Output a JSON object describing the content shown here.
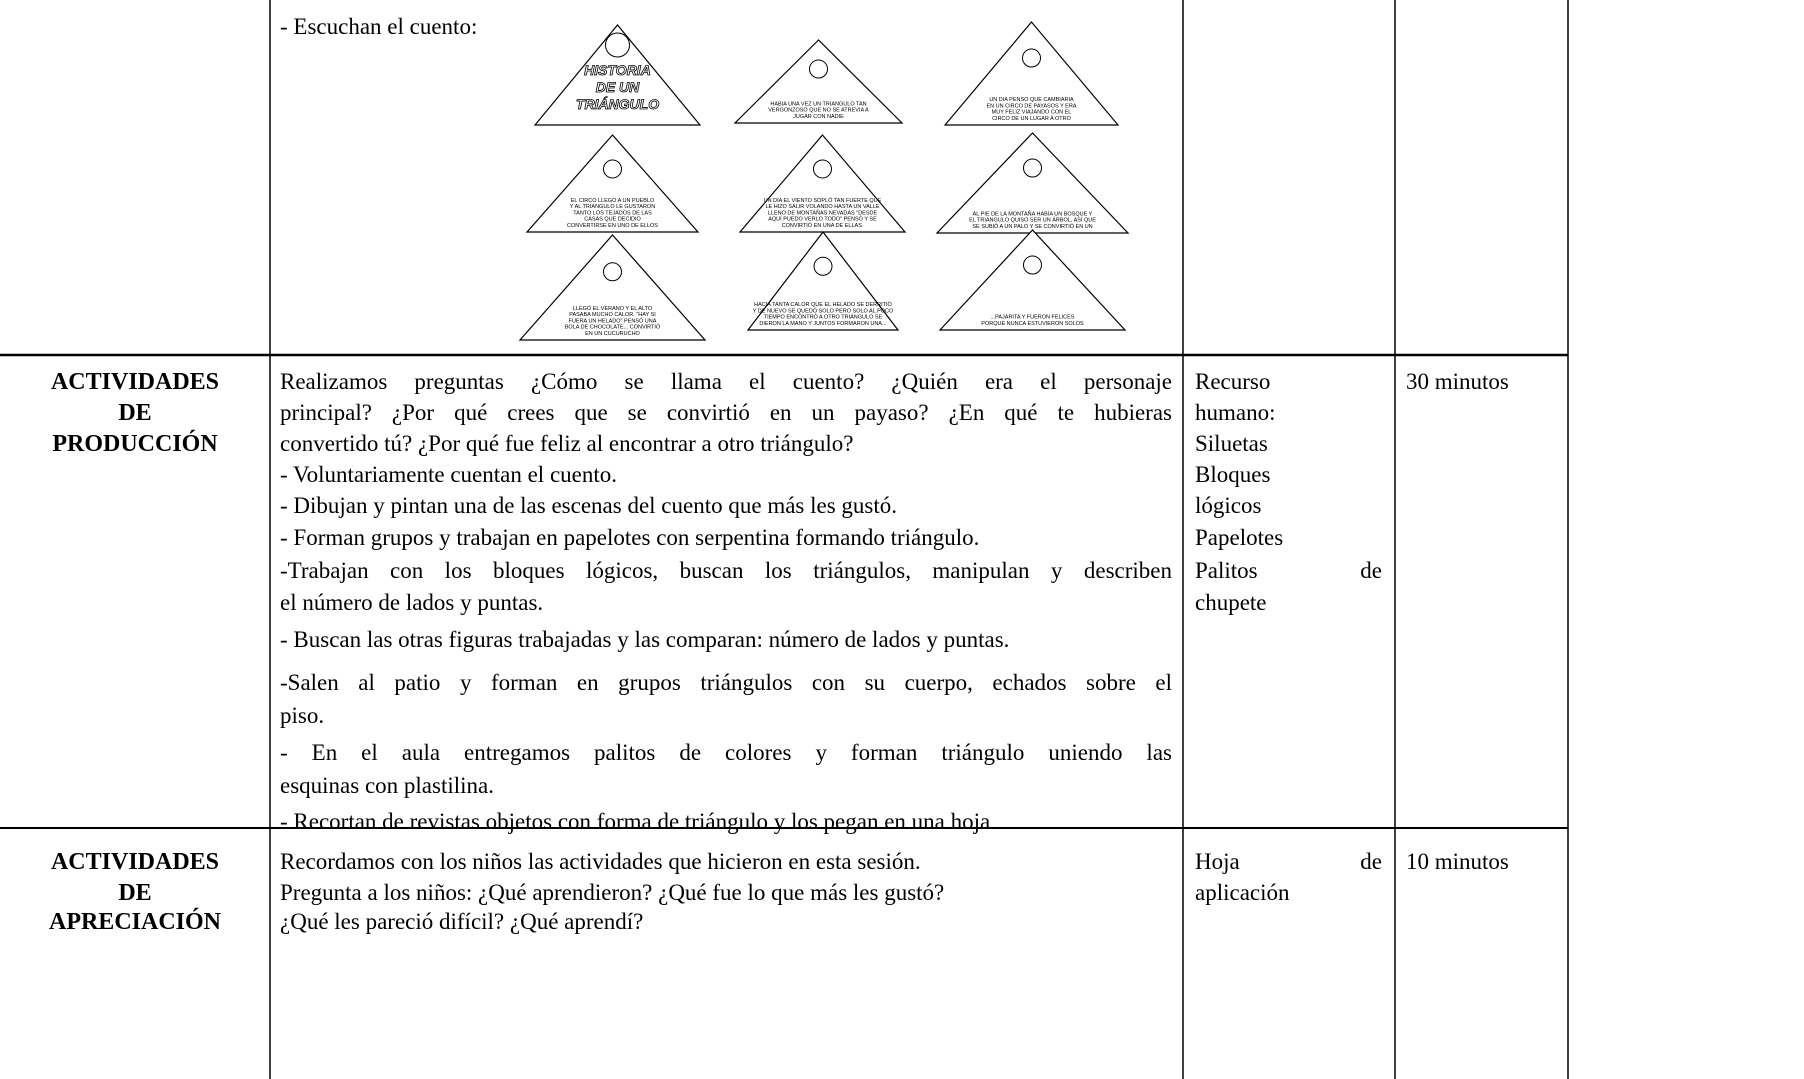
{
  "rows": [
    {
      "intro": "- Escuchan el cuento:",
      "story": [
        [
          "HISTORIA",
          "DE UN",
          "TRIÁNGULO"
        ],
        [
          "HABIA UNA VEZ UN TRIANGULO TAN",
          "VERGONZOSO QUE NO SE ATREVIA A",
          "JUGAR CON NADIE"
        ],
        [
          "UN DIA PENSO QUE CAMBIARIA",
          "EN UN CIRCO DE PAYASOS Y ERA",
          "MUY FELIZ VIAJANDO CON EL",
          "CIRCO DE UN LUGAR A OTRO"
        ],
        [
          "EL CIRCO LLEGO A UN PUEBLO",
          "Y AL TRIANGULO LE GUSTARON",
          "TANTO LOS TEJADOS DE LAS",
          "CASAS QUE DECIDIO",
          "CONVERTIRSE EN UNO DE ELLOS"
        ],
        [
          "UN DÍA EL VIENTO SOPLÓ TAN FUERTE QUE",
          "LE HIZO SALIR VOLANDO HASTA UN VALLE",
          "LLENO DE MONTAÑAS NEVADAS \"DESDE",
          "AQUÍ PUEDO VERLO TODO\" PENSÓ Y SE",
          "CONVIRTIÓ EN UNA DE ELLAS."
        ],
        [
          "AL PIE DE LA MONTAÑA HABÍA UN BOSQUE Y",
          "EL TRIÁNGULO QUISO SER UN ÁRBOL, ASÍ QUE",
          "SE SUBIÓ A UN PALO Y SE CONVIRTIÓ EN UN"
        ],
        [
          "LLEGÓ EL VERANO Y EL ALTO",
          "PASABA MUCHO CALOR. \"HAY SI",
          "FUERA UN HELADO\" PENSÓ UNA",
          "BOLA DE CHOCOLATE... CONVIRTIÓ",
          "EN UN CUCURUCHO"
        ],
        [
          "HACIA TANTA CALOR QUE EL HELADO SE DERRITIÓ",
          "Y DE NUEVO SE QUEDÓ SOLO PERO SOLO AL POCO",
          "TIEMPO ENCONTRÓ A OTRO TRIÁNGULO SE",
          "DIERON LA MANO Y JUNTOS FORMARON UNA..."
        ],
        [
          "...PAJARITA Y FUERON FELICES",
          "PORQUE NUNCA ESTUVIERON SOLOS"
        ]
      ]
    },
    {
      "label": [
        "ACTIVIDADES",
        "DE",
        "PRODUCCIÓN"
      ],
      "content": [
        [
          "Realizamos preguntas ¿Cómo se llama el cuento? ¿Quién era el personaje",
          "principal? ¿Por qué crees que se convirtió en un payaso? ¿En qué te hubieras",
          "convertido tú? ¿Por qué fue feliz al encontrar a otro triángulo?"
        ],
        [
          "- Voluntariamente cuentan el cuento."
        ],
        [
          "- Dibujan y pintan una de las escenas del cuento que más les gustó."
        ],
        [
          "- Forman grupos y trabajan en papelotes con serpentina formando triángulo."
        ],
        [
          "-Trabajan con los bloques lógicos, buscan los triángulos, manipulan y describen",
          " el número de lados y puntas."
        ],
        [
          "- Buscan las otras figuras trabajadas y las comparan: número de lados y puntas."
        ],
        [
          "-Salen al patio y forman en grupos triángulos con su cuerpo, echados sobre el",
          " piso."
        ],
        [
          "- En el aula entregamos palitos de colores y forman triángulo uniendo las",
          " esquinas con plastilina."
        ],
        [
          "- Recortan de revistas objetos con forma de triángulo y los pegan en una hoja"
        ]
      ],
      "resources": [
        "Recurso",
        "humano:",
        "Siluetas",
        "Bloques",
        "lógicos",
        "Papelotes",
        "Palitos de",
        "chupete"
      ],
      "time": "30 minutos"
    },
    {
      "label": [
        "ACTIVIDADES",
        "DE",
        "APRECIACIÓN"
      ],
      "content": [
        [
          "Recordamos con los niños las actividades que hicieron en esta sesión."
        ],
        [
          "Pregunta a los niños: ¿Qué aprendieron? ¿Qué fue lo que más les gustó?"
        ],
        [
          "¿Qué les pareció difícil? ¿Qué aprendí?"
        ]
      ],
      "resources": [
        "Hoja de",
        "aplicación"
      ],
      "time": "10 minutos"
    }
  ]
}
